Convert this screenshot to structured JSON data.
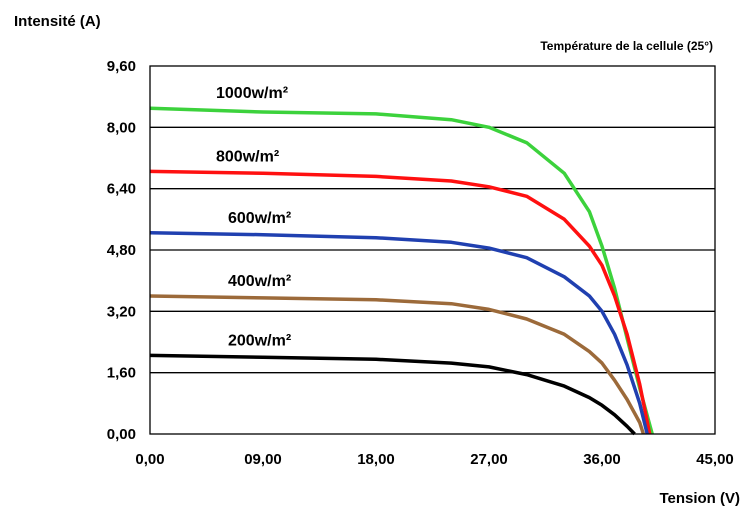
{
  "chart_data": {
    "type": "line",
    "ylabel": "Intensité (A)",
    "xlabel": "Tension  (V)",
    "annotation": "Température de la cellule (25°)",
    "xlim": [
      0,
      45
    ],
    "ylim": [
      0,
      9.6
    ],
    "x_ticks": [
      "0,00",
      "09,00",
      "18,00",
      "27,00",
      "36,00",
      "45,00"
    ],
    "y_ticks": [
      "0,00",
      "1,60",
      "3,20",
      "4,80",
      "6,40",
      "8,00",
      "9,60"
    ],
    "grid": "horizontal",
    "series": [
      {
        "name": "1000w/m²",
        "color": "#3cd23c",
        "points": [
          [
            0,
            8.5
          ],
          [
            9,
            8.4
          ],
          [
            18,
            8.35
          ],
          [
            24,
            8.2
          ],
          [
            27,
            8.0
          ],
          [
            30,
            7.6
          ],
          [
            33,
            6.8
          ],
          [
            35,
            5.8
          ],
          [
            36,
            4.9
          ],
          [
            37,
            3.8
          ],
          [
            38,
            2.5
          ],
          [
            39,
            1.2
          ],
          [
            40,
            0
          ]
        ]
      },
      {
        "name": "800w/m²",
        "color": "#ff1010",
        "points": [
          [
            0,
            6.85
          ],
          [
            9,
            6.8
          ],
          [
            18,
            6.72
          ],
          [
            24,
            6.6
          ],
          [
            27,
            6.45
          ],
          [
            30,
            6.2
          ],
          [
            33,
            5.6
          ],
          [
            35,
            4.9
          ],
          [
            36,
            4.4
          ],
          [
            37,
            3.6
          ],
          [
            38,
            2.6
          ],
          [
            39,
            1.3
          ],
          [
            39.8,
            0
          ]
        ]
      },
      {
        "name": "600w/m²",
        "color": "#2040b0",
        "points": [
          [
            0,
            5.25
          ],
          [
            9,
            5.2
          ],
          [
            18,
            5.12
          ],
          [
            24,
            5.0
          ],
          [
            27,
            4.85
          ],
          [
            30,
            4.6
          ],
          [
            33,
            4.1
          ],
          [
            35,
            3.6
          ],
          [
            36,
            3.2
          ],
          [
            37,
            2.6
          ],
          [
            38,
            1.8
          ],
          [
            39,
            0.8
          ],
          [
            39.6,
            0
          ]
        ]
      },
      {
        "name": "400w/m²",
        "color": "#9c6a3a",
        "points": [
          [
            0,
            3.6
          ],
          [
            9,
            3.55
          ],
          [
            18,
            3.5
          ],
          [
            24,
            3.4
          ],
          [
            27,
            3.25
          ],
          [
            30,
            3.0
          ],
          [
            33,
            2.6
          ],
          [
            35,
            2.15
          ],
          [
            36,
            1.85
          ],
          [
            37,
            1.4
          ],
          [
            38,
            0.9
          ],
          [
            39,
            0.3
          ],
          [
            39.3,
            0
          ]
        ]
      },
      {
        "name": "200w/m²",
        "color": "#000000",
        "points": [
          [
            0,
            2.05
          ],
          [
            9,
            2.0
          ],
          [
            18,
            1.95
          ],
          [
            24,
            1.85
          ],
          [
            27,
            1.75
          ],
          [
            30,
            1.55
          ],
          [
            33,
            1.25
          ],
          [
            35,
            0.95
          ],
          [
            36,
            0.75
          ],
          [
            37,
            0.5
          ],
          [
            38,
            0.2
          ],
          [
            38.6,
            0
          ]
        ]
      }
    ]
  }
}
